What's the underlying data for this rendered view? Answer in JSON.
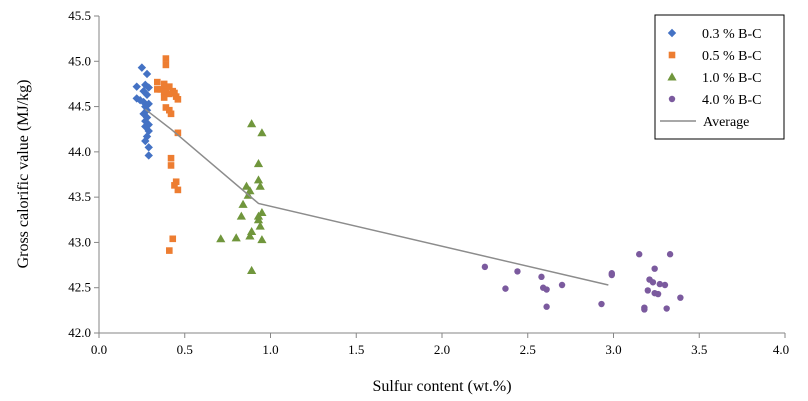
{
  "chart_data": {
    "type": "scatter",
    "title": "",
    "xlabel": "Sulfur content (wt.%)",
    "ylabel": "Gross calorific  value (MJ/kg)",
    "xlim": [
      0.0,
      4.0
    ],
    "ylim": [
      42.0,
      45.5
    ],
    "xticks": [
      "0.0",
      "0.5",
      "1.0",
      "1.5",
      "2.0",
      "2.5",
      "3.0",
      "3.5",
      "4.0"
    ],
    "yticks": [
      "42.0",
      "42.5",
      "43.0",
      "43.5",
      "44.0",
      "44.5",
      "45.0",
      "45.5"
    ],
    "grid": false,
    "legend_position": "top-right",
    "series": [
      {
        "name": "0.3 % B-C",
        "marker": "diamond",
        "color": "#4472C4",
        "points": [
          [
            0.25,
            44.93
          ],
          [
            0.28,
            44.86
          ],
          [
            0.27,
            44.74
          ],
          [
            0.22,
            44.72
          ],
          [
            0.29,
            44.71
          ],
          [
            0.26,
            44.67
          ],
          [
            0.28,
            44.63
          ],
          [
            0.22,
            44.59
          ],
          [
            0.24,
            44.57
          ],
          [
            0.26,
            44.55
          ],
          [
            0.29,
            44.53
          ],
          [
            0.27,
            44.5
          ],
          [
            0.28,
            44.46
          ],
          [
            0.26,
            44.42
          ],
          [
            0.28,
            44.38
          ],
          [
            0.27,
            44.34
          ],
          [
            0.29,
            44.3
          ],
          [
            0.27,
            44.28
          ],
          [
            0.29,
            44.23
          ],
          [
            0.28,
            44.17
          ],
          [
            0.27,
            44.12
          ],
          [
            0.29,
            44.05
          ],
          [
            0.29,
            43.96
          ]
        ]
      },
      {
        "name": "0.5 % B-C",
        "marker": "square",
        "color": "#ED7D31",
        "points": [
          [
            0.39,
            45.03
          ],
          [
            0.39,
            44.96
          ],
          [
            0.34,
            44.77
          ],
          [
            0.38,
            44.75
          ],
          [
            0.41,
            44.72
          ],
          [
            0.34,
            44.69
          ],
          [
            0.36,
            44.69
          ],
          [
            0.39,
            44.68
          ],
          [
            0.43,
            44.67
          ],
          [
            0.38,
            44.66
          ],
          [
            0.44,
            44.65
          ],
          [
            0.41,
            44.64
          ],
          [
            0.45,
            44.61
          ],
          [
            0.38,
            44.6
          ],
          [
            0.46,
            44.58
          ],
          [
            0.39,
            44.49
          ],
          [
            0.41,
            44.46
          ],
          [
            0.42,
            44.42
          ],
          [
            0.46,
            44.21
          ],
          [
            0.42,
            43.93
          ],
          [
            0.42,
            43.85
          ],
          [
            0.45,
            43.67
          ],
          [
            0.44,
            43.63
          ],
          [
            0.46,
            43.58
          ],
          [
            0.43,
            43.04
          ],
          [
            0.41,
            42.91
          ]
        ]
      },
      {
        "name": "1.0 % B-C",
        "marker": "triangle",
        "color": "#70963C",
        "points": [
          [
            0.89,
            44.31
          ],
          [
            0.95,
            44.21
          ],
          [
            0.93,
            43.87
          ],
          [
            0.93,
            43.69
          ],
          [
            0.86,
            43.62
          ],
          [
            0.94,
            43.62
          ],
          [
            0.88,
            43.57
          ],
          [
            0.87,
            43.52
          ],
          [
            0.84,
            43.42
          ],
          [
            0.83,
            43.29
          ],
          [
            0.95,
            43.33
          ],
          [
            0.93,
            43.29
          ],
          [
            0.93,
            43.25
          ],
          [
            0.94,
            43.18
          ],
          [
            0.89,
            43.12
          ],
          [
            0.88,
            43.07
          ],
          [
            0.71,
            43.04
          ],
          [
            0.8,
            43.05
          ],
          [
            0.95,
            43.03
          ],
          [
            0.89,
            42.69
          ]
        ]
      },
      {
        "name": "4.0 % B-C",
        "marker": "circle",
        "color": "#7B5A9E",
        "points": [
          [
            2.25,
            42.73
          ],
          [
            2.44,
            42.68
          ],
          [
            2.58,
            42.62
          ],
          [
            2.37,
            42.49
          ],
          [
            2.59,
            42.5
          ],
          [
            2.61,
            42.48
          ],
          [
            2.7,
            42.53
          ],
          [
            2.61,
            42.29
          ],
          [
            2.93,
            42.32
          ],
          [
            2.99,
            42.64
          ],
          [
            2.99,
            42.66
          ],
          [
            3.15,
            42.87
          ],
          [
            3.33,
            42.87
          ],
          [
            3.24,
            42.71
          ],
          [
            3.21,
            42.59
          ],
          [
            3.23,
            42.56
          ],
          [
            3.27,
            42.54
          ],
          [
            3.3,
            42.53
          ],
          [
            3.2,
            42.47
          ],
          [
            3.24,
            42.44
          ],
          [
            3.26,
            42.43
          ],
          [
            3.39,
            42.39
          ],
          [
            3.18,
            42.28
          ],
          [
            3.18,
            42.26
          ],
          [
            3.31,
            42.27
          ]
        ]
      },
      {
        "name": "Average",
        "marker": "line",
        "color": "#8C8C8C",
        "points": [
          [
            0.27,
            44.47
          ],
          [
            0.42,
            44.25
          ],
          [
            0.93,
            43.43
          ],
          [
            2.97,
            42.53
          ]
        ]
      }
    ]
  }
}
